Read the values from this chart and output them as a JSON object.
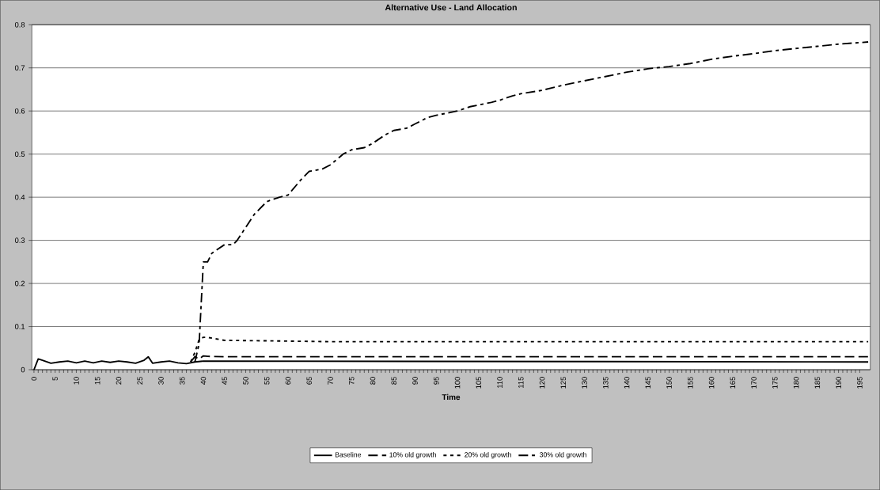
{
  "chart_data": {
    "type": "line",
    "title": "Alternative Use -  Land Allocation",
    "xlabel": "Time",
    "xlim": [
      -0.5,
      197.5
    ],
    "xticks": [
      0,
      5,
      10,
      15,
      20,
      25,
      30,
      35,
      40,
      45,
      50,
      55,
      60,
      65,
      70,
      75,
      80,
      85,
      90,
      95,
      100,
      105,
      110,
      115,
      120,
      125,
      130,
      135,
      140,
      145,
      150,
      155,
      160,
      165,
      170,
      175,
      180,
      185,
      190,
      195
    ],
    "ylim": [
      0,
      0.8
    ],
    "yticks": [
      0,
      0.1,
      0.2,
      0.3,
      0.4,
      0.5,
      0.6,
      0.7,
      0.8
    ],
    "grid": "y",
    "legend": "bottom",
    "marker": "none",
    "series": [
      {
        "name": "Baseline",
        "color": "#000000",
        "line_style": "solid",
        "x": [
          0,
          1,
          2,
          4,
          6,
          8,
          10,
          12,
          14,
          16,
          18,
          20,
          22,
          24,
          26,
          27,
          28,
          30,
          32,
          34,
          36,
          38,
          40,
          197
        ],
        "values": [
          0,
          0.025,
          0.022,
          0.015,
          0.018,
          0.02,
          0.016,
          0.02,
          0.016,
          0.02,
          0.017,
          0.02,
          0.018,
          0.015,
          0.022,
          0.03,
          0.015,
          0.018,
          0.02,
          0.016,
          0.014,
          0.018,
          0.02,
          0.018
        ]
      },
      {
        "name": "10% old growth",
        "color": "#000000",
        "line_style": "dashed",
        "x": [
          37,
          38,
          39,
          40,
          41,
          45,
          197
        ],
        "values": [
          0.018,
          0.03,
          0.025,
          0.032,
          0.031,
          0.03,
          0.03
        ]
      },
      {
        "name": "20% old growth",
        "color": "#000000",
        "line_style": "dotted",
        "x": [
          37,
          38,
          39,
          40,
          41,
          45,
          55,
          70,
          197
        ],
        "values": [
          0.018,
          0.04,
          0.07,
          0.075,
          0.075,
          0.068,
          0.067,
          0.065,
          0.065
        ]
      },
      {
        "name": "30% old growth",
        "color": "#000000",
        "line_style": "dashdot",
        "x": [
          38,
          39,
          40,
          41,
          42,
          45,
          47,
          48,
          50,
          52,
          55,
          58,
          60,
          63,
          65,
          68,
          70,
          73,
          75,
          78,
          80,
          83,
          85,
          88,
          90,
          93,
          95,
          100,
          103,
          108,
          110,
          113,
          115,
          120,
          125,
          130,
          135,
          140,
          145,
          150,
          155,
          160,
          165,
          170,
          175,
          180,
          185,
          190,
          197
        ],
        "values": [
          0.018,
          0.06,
          0.25,
          0.25,
          0.27,
          0.29,
          0.29,
          0.3,
          0.33,
          0.36,
          0.39,
          0.4,
          0.405,
          0.44,
          0.46,
          0.465,
          0.475,
          0.5,
          0.51,
          0.515,
          0.525,
          0.545,
          0.555,
          0.56,
          0.57,
          0.585,
          0.59,
          0.6,
          0.61,
          0.62,
          0.625,
          0.635,
          0.64,
          0.648,
          0.66,
          0.67,
          0.68,
          0.69,
          0.698,
          0.703,
          0.71,
          0.72,
          0.727,
          0.733,
          0.74,
          0.745,
          0.75,
          0.755,
          0.76
        ]
      }
    ]
  }
}
